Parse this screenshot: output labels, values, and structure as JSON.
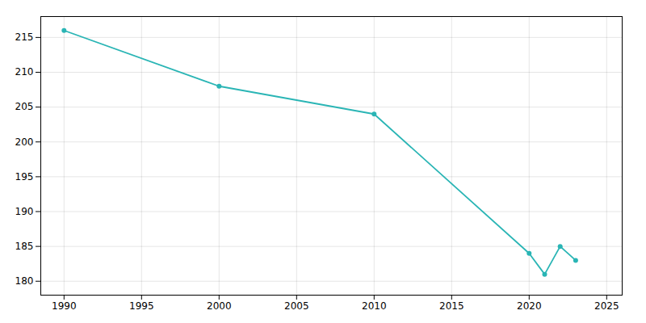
{
  "chart_data": {
    "type": "line",
    "x": [
      1990,
      2000,
      2010,
      2020,
      2021,
      2022,
      2023
    ],
    "values": [
      216,
      208,
      204,
      184,
      181,
      185,
      183
    ],
    "color": "#2ab5b5",
    "marker": "circle",
    "xlim": [
      1988.5,
      2026
    ],
    "xticks": [
      1990,
      1995,
      2000,
      2005,
      2010,
      2015,
      2020,
      2025
    ],
    "ylim": [
      178,
      218
    ],
    "yticks": [
      180,
      185,
      190,
      195,
      200,
      205,
      210,
      215
    ],
    "grid": true
  }
}
